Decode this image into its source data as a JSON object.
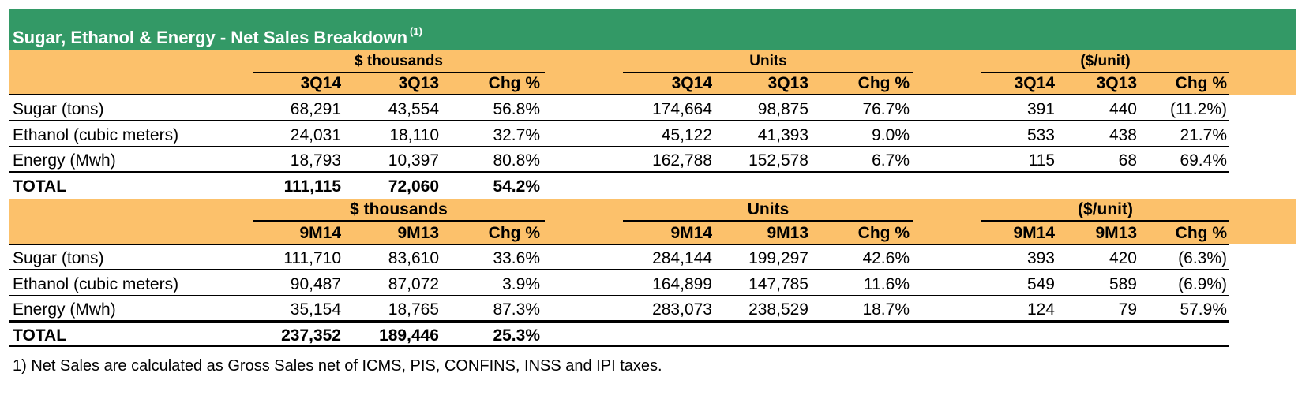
{
  "title": "Sugar, Ethanol & Energy - Net Sales Breakdown",
  "title_note": "(1)",
  "colors": {
    "title_bg": "#339966",
    "header_bg": "#fcc16b"
  },
  "sections": [
    {
      "groups": [
        "$ thousands",
        "Units",
        "($/unit)"
      ],
      "columns": [
        "3Q14",
        "3Q13",
        "Chg %",
        "3Q14",
        "3Q13",
        "Chg %",
        "3Q14",
        "3Q13",
        "Chg %"
      ],
      "rows": [
        {
          "label": "Sugar (tons)",
          "values": [
            "68,291",
            "43,554",
            "56.8%",
            "174,664",
            "98,875",
            "76.7%",
            "391",
            "440",
            "(11.2%)"
          ]
        },
        {
          "label": "Ethanol (cubic meters)",
          "values": [
            "24,031",
            "18,110",
            "32.7%",
            "45,122",
            "41,393",
            "9.0%",
            "533",
            "438",
            "21.7%"
          ]
        },
        {
          "label": "Energy (Mwh)",
          "values": [
            "18,793",
            "10,397",
            "80.8%",
            "162,788",
            "152,578",
            "6.7%",
            "115",
            "68",
            "69.4%"
          ]
        }
      ],
      "total": {
        "label": "TOTAL",
        "values": [
          "111,115",
          "72,060",
          "54.2%"
        ]
      }
    },
    {
      "groups": [
        "$ thousands",
        "Units",
        "($/unit)"
      ],
      "columns": [
        "9M14",
        "9M13",
        "Chg %",
        "9M14",
        "9M13",
        "Chg %",
        "9M14",
        "9M13",
        "Chg %"
      ],
      "rows": [
        {
          "label": "Sugar (tons)",
          "values": [
            "111,710",
            "83,610",
            "33.6%",
            "284,144",
            "199,297",
            "42.6%",
            "393",
            "420",
            "(6.3%)"
          ]
        },
        {
          "label": "Ethanol (cubic meters)",
          "values": [
            "90,487",
            "87,072",
            "3.9%",
            "164,899",
            "147,785",
            "11.6%",
            "549",
            "589",
            "(6.9%)"
          ]
        },
        {
          "label": "Energy (Mwh)",
          "values": [
            "35,154",
            "18,765",
            "87.3%",
            "283,073",
            "238,529",
            "18.7%",
            "124",
            "79",
            "57.9%"
          ]
        }
      ],
      "total": {
        "label": "TOTAL",
        "values": [
          "237,352",
          "189,446",
          "25.3%"
        ]
      }
    }
  ],
  "footnote": "1) Net Sales are calculated as Gross Sales net of ICMS, PIS, CONFINS, INSS and IPI taxes."
}
